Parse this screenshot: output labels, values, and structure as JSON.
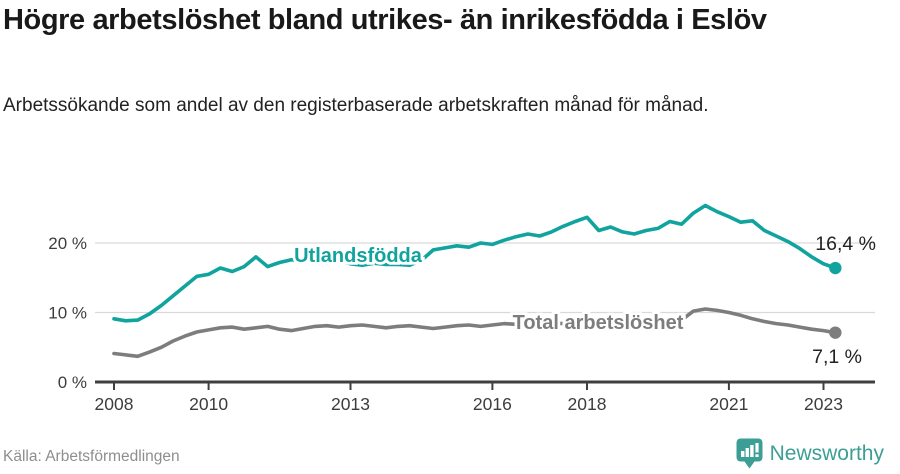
{
  "header": {
    "title": "Högre arbetslöshet bland utrikes- än inrikesfödda i Eslöv",
    "subtitle": "Arbetssökande som andel av den registerbaserade arbetskraften månad för månad."
  },
  "footer": {
    "source": "Källa: Arbetsförmedlingen",
    "brand": "Newsworthy"
  },
  "colors": {
    "accent_teal": "#11a39e",
    "series_gray": "#7d7d7d",
    "grid": "#d9d9d9",
    "axis": "#3f3f3f",
    "tick_text": "#3d3d3d",
    "annotation_text": "#222222",
    "logo_teal": "#3d9e96"
  },
  "chart_data": {
    "type": "line",
    "title": "",
    "xlabel": "",
    "ylabel": "",
    "x_unit": "year (monthly share, sampled quarterly)",
    "y_unit": "% av registerbaserad arbetskraft",
    "xlim": [
      2007.6,
      2024.1
    ],
    "ylim": [
      0,
      27
    ],
    "grid": "horizontal",
    "legend_position": "inline-on-line",
    "x_ticks": [
      2008,
      2010,
      2013,
      2016,
      2018,
      2021,
      2023
    ],
    "x_tick_labels": [
      "2008",
      "2010",
      "2013",
      "2016",
      "2018",
      "2021",
      "2023"
    ],
    "y_ticks": [
      {
        "value": 0,
        "label": "0 %"
      },
      {
        "value": 10,
        "label": "10 %"
      },
      {
        "value": 20,
        "label": "20 %"
      }
    ],
    "x_start": 2008.0,
    "x_step": 0.25,
    "x_end": 2023.25,
    "series": [
      {
        "name": "Utlandsfödda",
        "color": "#11a39e",
        "end_value": 16.4,
        "end_label": "16,4 %",
        "values": [
          9.1,
          8.8,
          8.9,
          9.8,
          11.0,
          12.4,
          13.8,
          15.2,
          15.5,
          16.4,
          15.9,
          16.6,
          18.0,
          16.6,
          17.2,
          17.6,
          17.4,
          17.7,
          17.2,
          17.5,
          17.0,
          16.8,
          17.1,
          16.9,
          16.9,
          16.8,
          17.5,
          19.0,
          19.3,
          19.6,
          19.4,
          20.0,
          19.8,
          20.4,
          20.9,
          21.3,
          21.0,
          21.6,
          22.4,
          23.1,
          23.7,
          21.8,
          22.3,
          21.6,
          21.3,
          21.8,
          22.1,
          23.1,
          22.7,
          24.3,
          25.4,
          24.5,
          23.8,
          23.0,
          23.2,
          21.8,
          21.0,
          20.2,
          19.2,
          18.0,
          17.0,
          16.4
        ]
      },
      {
        "name": "Total arbetslöshet",
        "color": "#7d7d7d",
        "end_value": 7.1,
        "end_label": "7,1 %",
        "values": [
          4.1,
          3.9,
          3.7,
          4.3,
          5.0,
          5.9,
          6.6,
          7.2,
          7.5,
          7.8,
          7.9,
          7.6,
          7.8,
          8.0,
          7.6,
          7.4,
          7.7,
          8.0,
          8.1,
          7.9,
          8.1,
          8.2,
          8.0,
          7.8,
          8.0,
          8.1,
          7.9,
          7.7,
          7.9,
          8.1,
          8.2,
          8.0,
          8.2,
          8.4,
          8.3,
          8.1,
          8.3,
          8.5,
          8.4,
          8.2,
          8.4,
          8.3,
          8.1,
          7.9,
          8.1,
          8.3,
          8.4,
          8.6,
          8.9,
          10.2,
          10.5,
          10.3,
          10.0,
          9.6,
          9.1,
          8.7,
          8.4,
          8.2,
          7.9,
          7.6,
          7.4,
          7.1
        ]
      }
    ]
  }
}
